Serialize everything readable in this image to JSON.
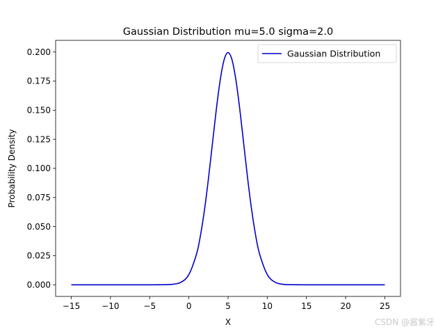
{
  "chart_data": {
    "type": "line",
    "title": "Gaussian Distribution mu=5.0 sigma=2.0",
    "xlabel": "X",
    "ylabel": "Probability Density",
    "xlim": [
      -17,
      27
    ],
    "ylim": [
      -0.01,
      0.21
    ],
    "xticks": [
      -15,
      -10,
      -5,
      0,
      5,
      10,
      15,
      20,
      25
    ],
    "xtick_labels": [
      "−15",
      "−10",
      "−5",
      "0",
      "5",
      "10",
      "15",
      "20",
      "25"
    ],
    "yticks": [
      0.0,
      0.025,
      0.05,
      0.075,
      0.1,
      0.125,
      0.15,
      0.175,
      0.2
    ],
    "ytick_labels": [
      "0.000",
      "0.025",
      "0.050",
      "0.075",
      "0.100",
      "0.125",
      "0.150",
      "0.175",
      "0.200"
    ],
    "grid": false,
    "legend_position": "top-right",
    "series": [
      {
        "name": "Gaussian Distribution",
        "color": "#0000cc",
        "x": [
          -15,
          -10,
          -5,
          -3,
          -2,
          -1,
          0,
          1,
          1.5,
          2,
          2.5,
          3,
          3.5,
          4,
          4.5,
          5,
          5.5,
          6,
          6.5,
          7,
          7.5,
          8,
          8.5,
          9,
          10,
          11,
          12,
          13,
          15,
          20,
          25
        ],
        "y": [
          0.0,
          0.0,
          0.0,
          0.0001,
          0.0005,
          0.0022,
          0.0088,
          0.027,
          0.0432,
          0.0648,
          0.0913,
          0.121,
          0.1506,
          0.176,
          0.1934,
          0.1995,
          0.1934,
          0.176,
          0.1506,
          0.121,
          0.0913,
          0.0648,
          0.0432,
          0.027,
          0.0088,
          0.0022,
          0.0004,
          0.0001,
          0.0,
          0.0,
          0.0
        ]
      }
    ]
  },
  "watermark": "CSDN @酱紫牙"
}
